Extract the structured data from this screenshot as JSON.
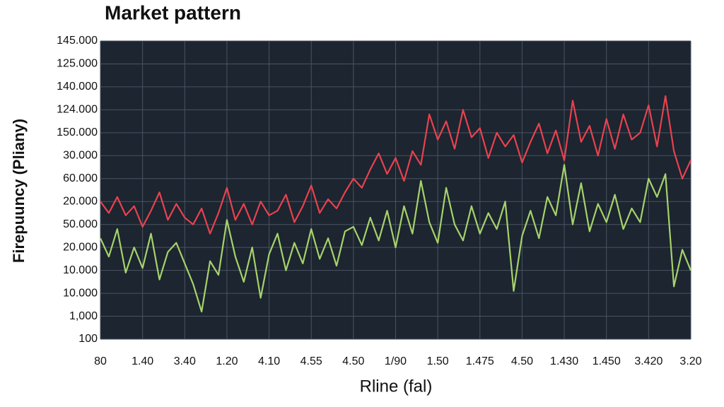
{
  "chart_data": {
    "type": "line",
    "title": "Market pattern",
    "x_label": "Rline (fal)",
    "y_label": "Firepuuncy (Pliany)",
    "x": [
      0,
      0.2,
      0.4,
      0.6,
      0.8,
      1,
      1.2,
      1.4,
      1.6,
      1.8,
      2,
      2.2,
      2.4,
      2.6,
      2.8,
      3,
      3.2,
      3.4,
      3.6,
      3.8,
      4,
      4.2,
      4.4,
      4.6,
      4.8,
      5,
      5.2,
      5.4,
      5.6,
      5.8,
      6,
      6.2,
      6.4,
      6.6,
      6.8,
      7,
      7.2,
      7.4,
      7.6,
      7.8,
      8,
      8.2,
      8.4,
      8.6,
      8.8,
      9,
      9.2,
      9.4,
      9.6,
      9.8,
      10,
      10.2,
      10.4,
      10.6,
      10.8,
      11,
      11.2,
      11.4,
      11.6,
      11.8,
      12,
      12.2,
      12.4,
      12.6,
      12.8,
      13,
      13.2,
      13.4,
      13.6,
      13.8,
      14
    ],
    "series": [
      {
        "color": "#e8424e",
        "values": [
          6.0,
          5.5,
          6.2,
          5.4,
          5.8,
          4.9,
          5.6,
          6.4,
          5.2,
          5.9,
          5.3,
          5.0,
          5.7,
          4.6,
          5.5,
          6.6,
          5.2,
          5.9,
          5.0,
          6.0,
          5.4,
          5.6,
          6.3,
          5.1,
          5.8,
          6.7,
          5.5,
          6.1,
          5.7,
          6.4,
          7.0,
          6.6,
          7.4,
          8.1,
          7.2,
          7.9,
          6.9,
          8.2,
          7.6,
          9.8,
          8.7,
          9.5,
          8.3,
          10.0,
          8.8,
          9.2,
          7.9,
          9.0,
          8.4,
          8.9,
          7.7,
          8.6,
          9.4,
          8.1,
          9.1,
          7.8,
          10.4,
          8.6,
          9.3,
          8.0,
          9.6,
          8.3,
          9.8,
          8.7,
          9.0,
          10.2,
          8.4,
          10.6,
          8.2,
          7.0,
          7.8
        ]
      },
      {
        "color": "#a6d26a",
        "values": [
          4.4,
          3.6,
          4.8,
          2.9,
          4.0,
          3.1,
          4.6,
          2.6,
          3.8,
          4.2,
          3.3,
          2.4,
          1.2,
          3.4,
          2.8,
          5.2,
          3.6,
          2.5,
          4.0,
          1.8,
          3.7,
          4.6,
          3.0,
          4.2,
          3.3,
          4.8,
          3.5,
          4.4,
          3.2,
          4.7,
          4.9,
          4.1,
          5.3,
          4.3,
          5.6,
          4.0,
          5.8,
          4.6,
          6.9,
          5.1,
          4.2,
          6.6,
          5.0,
          4.3,
          5.8,
          4.6,
          5.5,
          4.8,
          6.0,
          2.1,
          4.5,
          5.6,
          4.4,
          6.2,
          5.4,
          7.6,
          5.0,
          6.8,
          4.7,
          5.9,
          5.1,
          6.3,
          4.8,
          5.7,
          5.1,
          7.0,
          6.2,
          7.2,
          2.3,
          3.9,
          3.0
        ]
      }
    ],
    "xlim": [
      0,
      14
    ],
    "xticks": [
      {
        "value": 0,
        "label": "80"
      },
      {
        "value": 1,
        "label": "1.40"
      },
      {
        "value": 2,
        "label": "3.40"
      },
      {
        "value": 3,
        "label": "1.20"
      },
      {
        "value": 4,
        "label": "4.10"
      },
      {
        "value": 5,
        "label": "4.55"
      },
      {
        "value": 6,
        "label": "4.50"
      },
      {
        "value": 7,
        "label": "1/90"
      },
      {
        "value": 8,
        "label": "1.50"
      },
      {
        "value": 9,
        "label": "1.475"
      },
      {
        "value": 10,
        "label": "4.50"
      },
      {
        "value": 11,
        "label": "1.430"
      },
      {
        "value": 12,
        "label": "1.450"
      },
      {
        "value": 13,
        "label": "3.420"
      },
      {
        "value": 14,
        "label": "3.20"
      }
    ],
    "ylim": [
      0,
      13
    ],
    "yticks": [
      {
        "value": 0,
        "label": "100"
      },
      {
        "value": 1,
        "label": "1,000"
      },
      {
        "value": 2,
        "label": "10.000"
      },
      {
        "value": 3,
        "label": "10.000"
      },
      {
        "value": 4,
        "label": "20.000"
      },
      {
        "value": 5,
        "label": "50.000"
      },
      {
        "value": 6,
        "label": "20.000"
      },
      {
        "value": 7,
        "label": "60.000"
      },
      {
        "value": 8,
        "label": "30.000"
      },
      {
        "value": 9,
        "label": "150.000"
      },
      {
        "value": 10,
        "label": "124.000"
      },
      {
        "value": 11,
        "label": "140.000"
      },
      {
        "value": 12,
        "label": "125.000"
      },
      {
        "value": 13,
        "label": "145.000"
      }
    ],
    "grid": true
  }
}
